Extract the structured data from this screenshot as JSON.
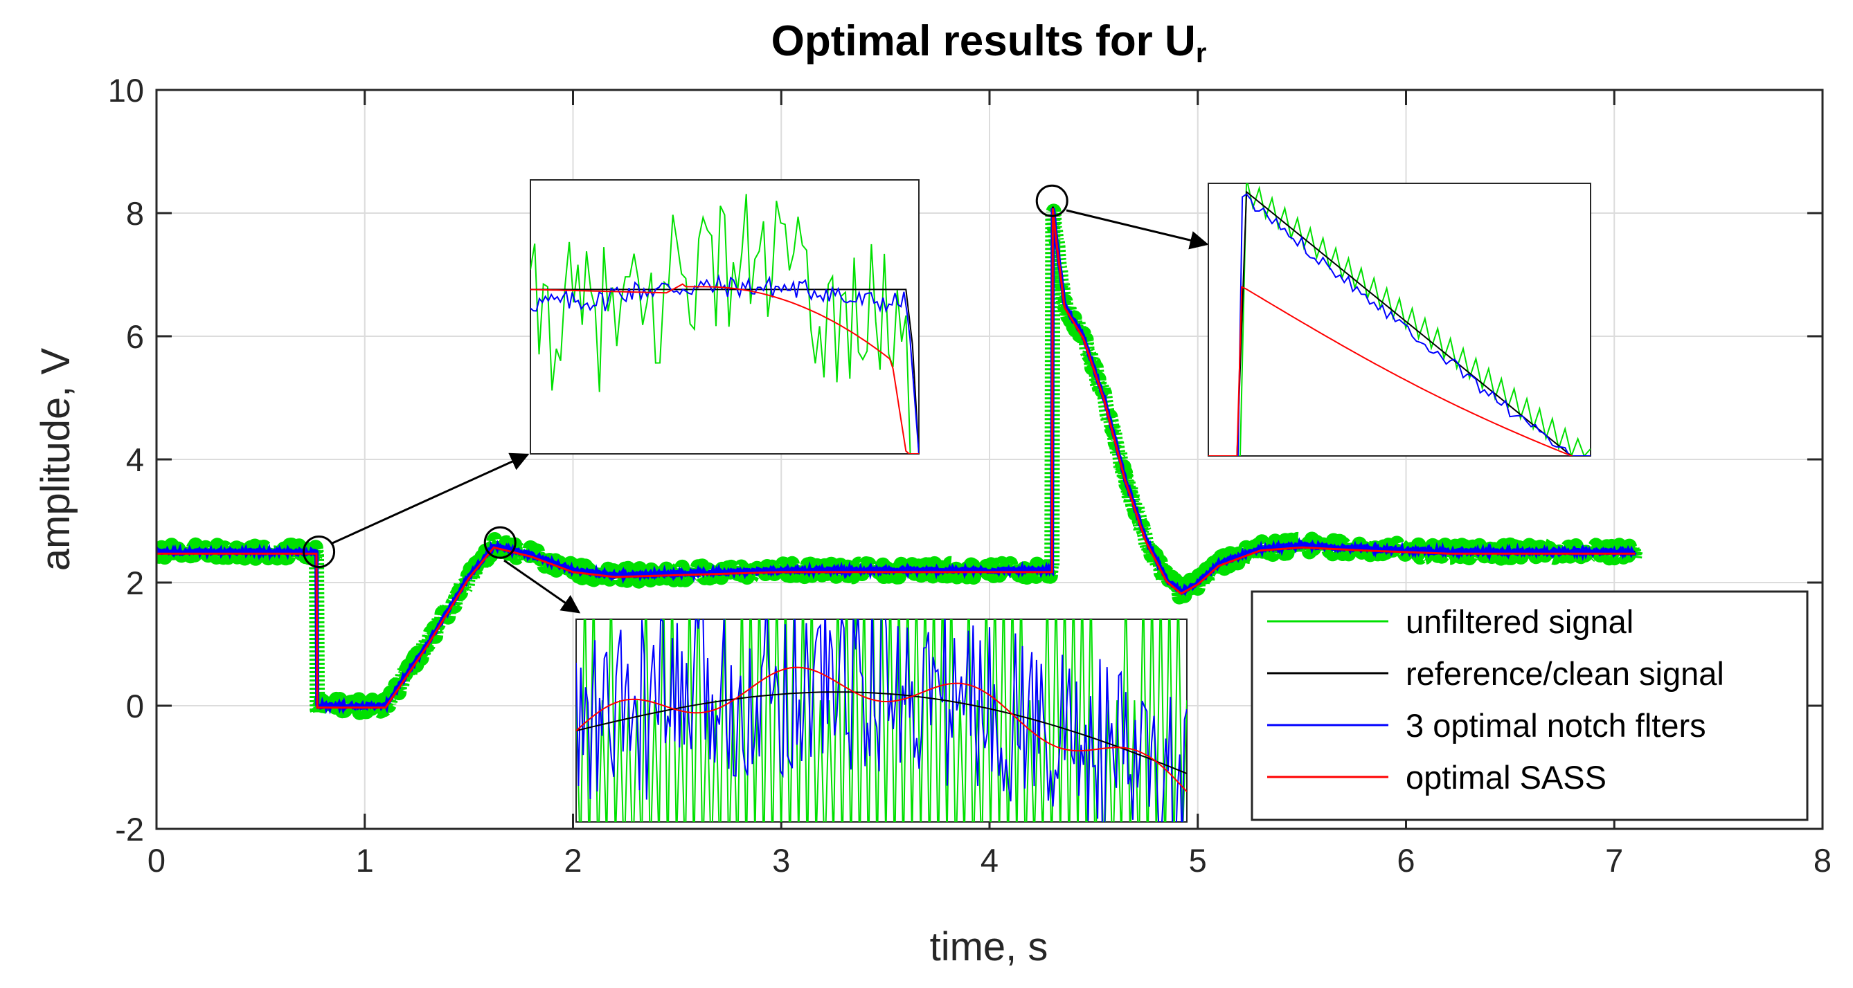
{
  "chart_data": [
    {
      "type": "line",
      "title_main": "Optimal results for U",
      "title_sub": "r",
      "xlabel": "time, s",
      "ylabel": "amplitude, V",
      "xlim": [
        0,
        8
      ],
      "ylim": [
        -2,
        10
      ],
      "xticks": [
        "0",
        "1",
        "2",
        "3",
        "4",
        "5",
        "6",
        "7",
        "8"
      ],
      "yticks": [
        "-2",
        "0",
        "2",
        "4",
        "6",
        "8",
        "10"
      ],
      "grid": true,
      "legend_position": "bottom-right",
      "series": [
        {
          "name": "unfiltered signal",
          "color": "#00e000"
        },
        {
          "name": "reference/clean signal",
          "color": "#000000"
        },
        {
          "name": "3 optimal notch flters",
          "color": "#0000ff"
        },
        {
          "name": "optimal SASS",
          "color": "#ff0000"
        }
      ],
      "reference_signal": {
        "x": [
          0,
          0.77,
          0.771,
          1.1,
          1.3,
          1.5,
          1.62,
          1.8,
          2.0,
          2.2,
          2.5,
          3.0,
          3.5,
          4.0,
          4.3,
          4.301,
          4.32,
          4.36,
          4.45,
          4.55,
          4.65,
          4.75,
          4.85,
          4.92,
          5.0,
          5.1,
          5.3,
          5.5,
          5.8,
          6.2,
          7.1
        ],
        "y": [
          2.5,
          2.5,
          0.0,
          0.0,
          1.0,
          2.1,
          2.6,
          2.45,
          2.2,
          2.12,
          2.15,
          2.2,
          2.2,
          2.2,
          2.2,
          8.2,
          7.6,
          6.5,
          6.0,
          5.0,
          3.7,
          2.7,
          2.05,
          1.85,
          2.0,
          2.3,
          2.55,
          2.6,
          2.55,
          2.5,
          2.5
        ]
      },
      "annotations": [
        {
          "label": "zoom-1",
          "x": 0.78,
          "y": 2.5
        },
        {
          "label": "zoom-2",
          "x": 1.65,
          "y": 2.65
        },
        {
          "label": "zoom-3",
          "x": 4.3,
          "y": 8.2
        }
      ]
    }
  ]
}
